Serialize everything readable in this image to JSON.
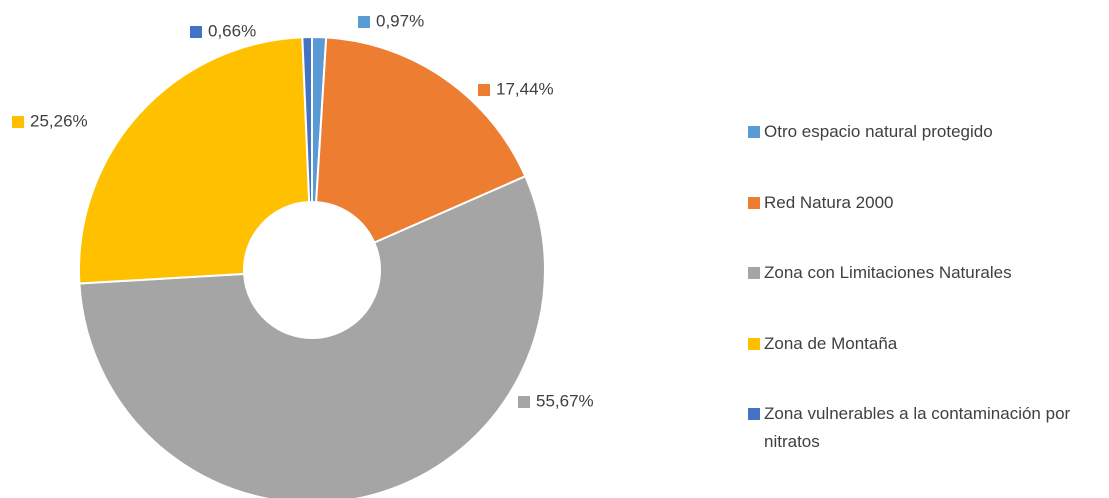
{
  "chart_data": {
    "type": "pie",
    "categories": [
      "Otro espacio natural protegido",
      "Red Natura 2000",
      "Zona con Limitaciones Naturales",
      "Zona de Montaña",
      "Zona vulnerables a la contaminación por nitratos"
    ],
    "values": [
      0.97,
      17.44,
      55.67,
      25.26,
      0.66
    ],
    "value_labels": [
      "0,97%",
      "17,44%",
      "55,67%",
      "25,26%",
      "0,66%"
    ],
    "colors": [
      "#5B9BD5",
      "#ED7D31",
      "#A5A5A5",
      "#FFC000",
      "#4472C4"
    ],
    "donut": true,
    "legend": "right"
  }
}
